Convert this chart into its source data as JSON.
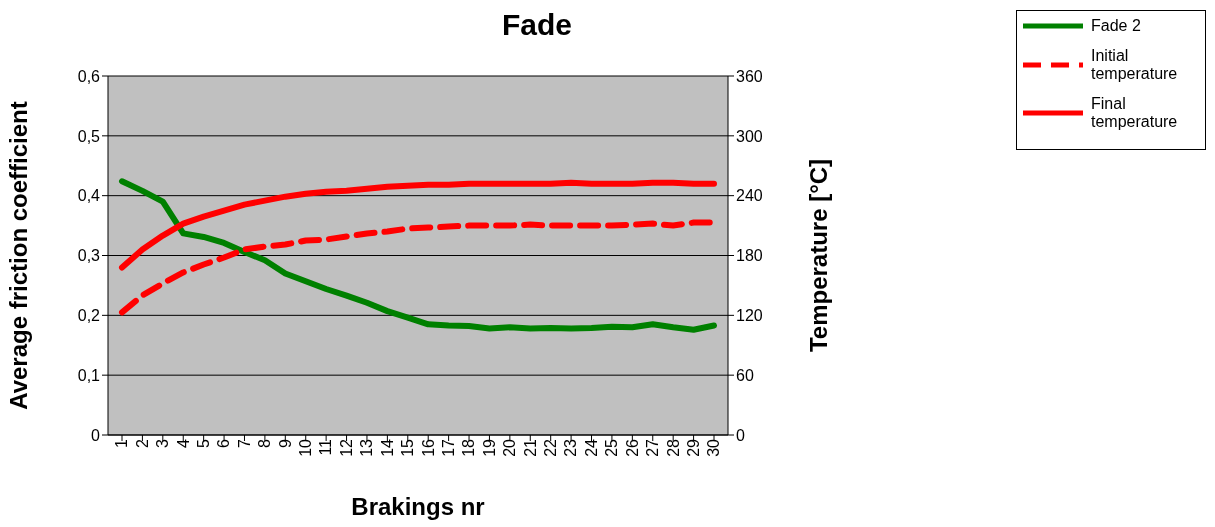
{
  "chart_data": {
    "type": "line",
    "title": "Fade",
    "xlabel": "Brakings nr",
    "ylabel": "Average friction coefficient",
    "y2label": "Temperature [°C]",
    "categories": [
      "1",
      "2",
      "3",
      "4",
      "5",
      "6",
      "7",
      "8",
      "9",
      "10",
      "11",
      "12",
      "13",
      "14",
      "15",
      "16",
      "17",
      "18",
      "19",
      "20",
      "21",
      "22",
      "23",
      "24",
      "25",
      "26",
      "27",
      "28",
      "29",
      "30"
    ],
    "ylim": [
      0,
      0.6
    ],
    "yticks": [
      {
        "value": 0,
        "label": "0"
      },
      {
        "value": 0.1,
        "label": "0,1"
      },
      {
        "value": 0.2,
        "label": "0,2"
      },
      {
        "value": 0.3,
        "label": "0,3"
      },
      {
        "value": 0.4,
        "label": "0,4"
      },
      {
        "value": 0.5,
        "label": "0,5"
      },
      {
        "value": 0.6,
        "label": "0,6"
      }
    ],
    "y2lim": [
      0,
      360
    ],
    "y2ticks": [
      0,
      60,
      120,
      180,
      240,
      300,
      360
    ],
    "grid": "y",
    "legend": "top right",
    "marker": "none",
    "series": [
      {
        "name": "Fade 2",
        "color": "#008000",
        "line_style": "solid",
        "values": [
          0.424,
          0.408,
          0.39,
          0.337,
          0.331,
          0.321,
          0.306,
          0.292,
          0.27,
          0.257,
          0.244,
          0.233,
          0.221,
          0.207,
          0.196,
          0.185,
          0.183,
          0.182,
          0.178,
          0.18,
          0.178,
          0.179,
          0.178,
          0.179,
          0.181,
          0.18,
          0.185,
          0.18,
          0.176,
          0.183
        ]
      },
      {
        "name": "Initial temperature",
        "color": "#ff0000",
        "line_style": "dashed",
        "axis": "y2",
        "values": [
          123,
          140,
          152,
          163,
          171,
          178,
          186,
          189,
          191,
          195,
          196,
          199,
          202,
          204,
          207,
          208,
          209,
          210,
          210,
          210,
          211,
          210,
          210,
          210,
          210,
          211,
          212,
          210,
          213,
          213
        ]
      },
      {
        "name": "Final temperature",
        "color": "#ff0000",
        "line_style": "solid",
        "axis": "y2",
        "values": [
          168,
          186,
          200,
          212,
          219,
          225,
          231,
          235,
          239,
          242,
          244,
          245,
          247,
          249,
          250,
          251,
          251,
          252,
          252,
          252,
          252,
          252,
          253,
          252,
          252,
          252,
          253,
          253,
          252,
          252
        ]
      }
    ]
  }
}
